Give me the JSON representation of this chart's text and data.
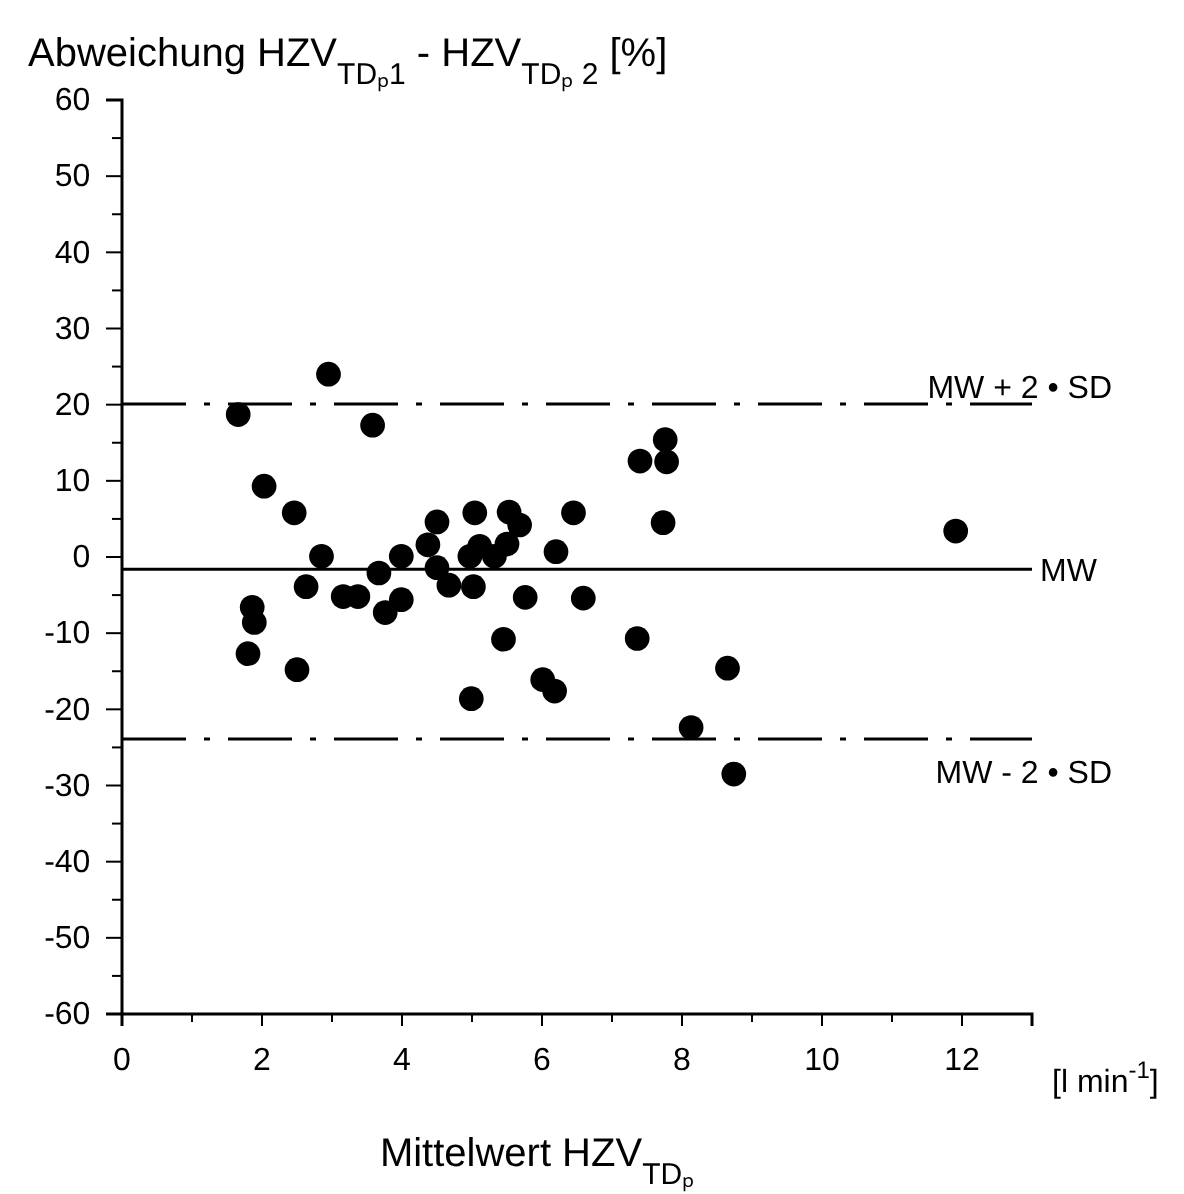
{
  "chart_data": {
    "type": "scatter",
    "ylabel": "Abweichung HZV$_{TDₚ1}$ - HZV$_{TDₚ 2}$  [%]",
    "xlabel": "Mittelwert HZV$_{TDₚ}$",
    "annotations": [
      "[l min$^{-1}$]"
    ],
    "x": [
      2.95,
      1.66,
      3.58,
      2.03,
      2.46,
      2.85,
      2.63,
      1.86,
      1.89,
      1.8,
      2.5,
      3.16,
      3.37,
      3.67,
      3.76,
      3.99,
      3.99,
      4.37,
      4.5,
      4.5,
      4.67,
      5.04,
      4.97,
      5.11,
      5.02,
      4.99,
      5.53,
      5.68,
      5.5,
      5.32,
      5.76,
      5.45,
      6.01,
      6.18,
      6.2,
      6.45,
      6.59,
      7.4,
      7.76,
      7.78,
      7.73,
      7.36,
      8.13,
      8.65,
      8.74,
      11.91
    ],
    "series": [
      {
        "color": "#000000",
        "values": [
          24.0,
          18.7,
          17.3,
          9.3,
          5.8,
          0.1,
          -3.9,
          -6.6,
          -8.6,
          -12.7,
          -14.8,
          -5.2,
          -5.2,
          -2.1,
          -7.3,
          0.1,
          -5.6,
          1.6,
          4.6,
          -1.4,
          -3.7,
          5.8,
          0.1,
          1.4,
          -3.9,
          -18.6,
          5.9,
          4.2,
          1.7,
          0.1,
          -5.3,
          -10.8,
          -16.1,
          -17.6,
          0.7,
          5.8,
          -5.4,
          12.6,
          15.4,
          12.5,
          4.5,
          -10.7,
          -22.4,
          -14.6,
          -28.5,
          3.4
        ]
      }
    ],
    "marker": "circle",
    "xlim": [
      0,
      13
    ],
    "xticks": [
      0,
      {
        "value": 1,
        "label": null
      },
      2,
      {
        "value": 3,
        "label": null
      },
      4,
      {
        "value": 5,
        "label": null
      },
      6,
      {
        "value": 7,
        "label": null
      },
      8,
      {
        "value": 9,
        "label": null
      },
      10,
      {
        "value": 11,
        "label": null
      },
      12,
      {
        "value": 13,
        "label": null
      }
    ],
    "ylim": [
      -60,
      60
    ],
    "yticks": [
      -60,
      {
        "value": -55,
        "label": null
      },
      -50,
      {
        "value": -45,
        "label": null
      },
      -40,
      {
        "value": -35,
        "label": null
      },
      -30,
      {
        "value": -25,
        "label": null
      },
      -20,
      {
        "value": -15,
        "label": null
      },
      -10,
      {
        "value": -5,
        "label": null
      },
      0,
      {
        "value": 5,
        "label": null
      },
      10,
      {
        "value": 15,
        "label": null
      },
      20,
      {
        "value": 25,
        "label": null
      },
      30,
      {
        "value": 35,
        "label": null
      },
      40,
      {
        "value": 45,
        "label": null
      },
      50,
      {
        "value": 55,
        "label": null
      },
      60
    ],
    "ref_lines": [
      {
        "axis": "y",
        "value": 20.1,
        "label": "MW + 2 • SD",
        "line_style": "dashed",
        "color": "#000000"
      },
      {
        "axis": "y",
        "value": -1.6,
        "label": "MW",
        "line_style": "solid",
        "color": "#000000"
      },
      {
        "axis": "y",
        "value": -23.9,
        "label": "MW - 2 • SD",
        "line_style": "dashed",
        "color": "#000000"
      }
    ]
  }
}
